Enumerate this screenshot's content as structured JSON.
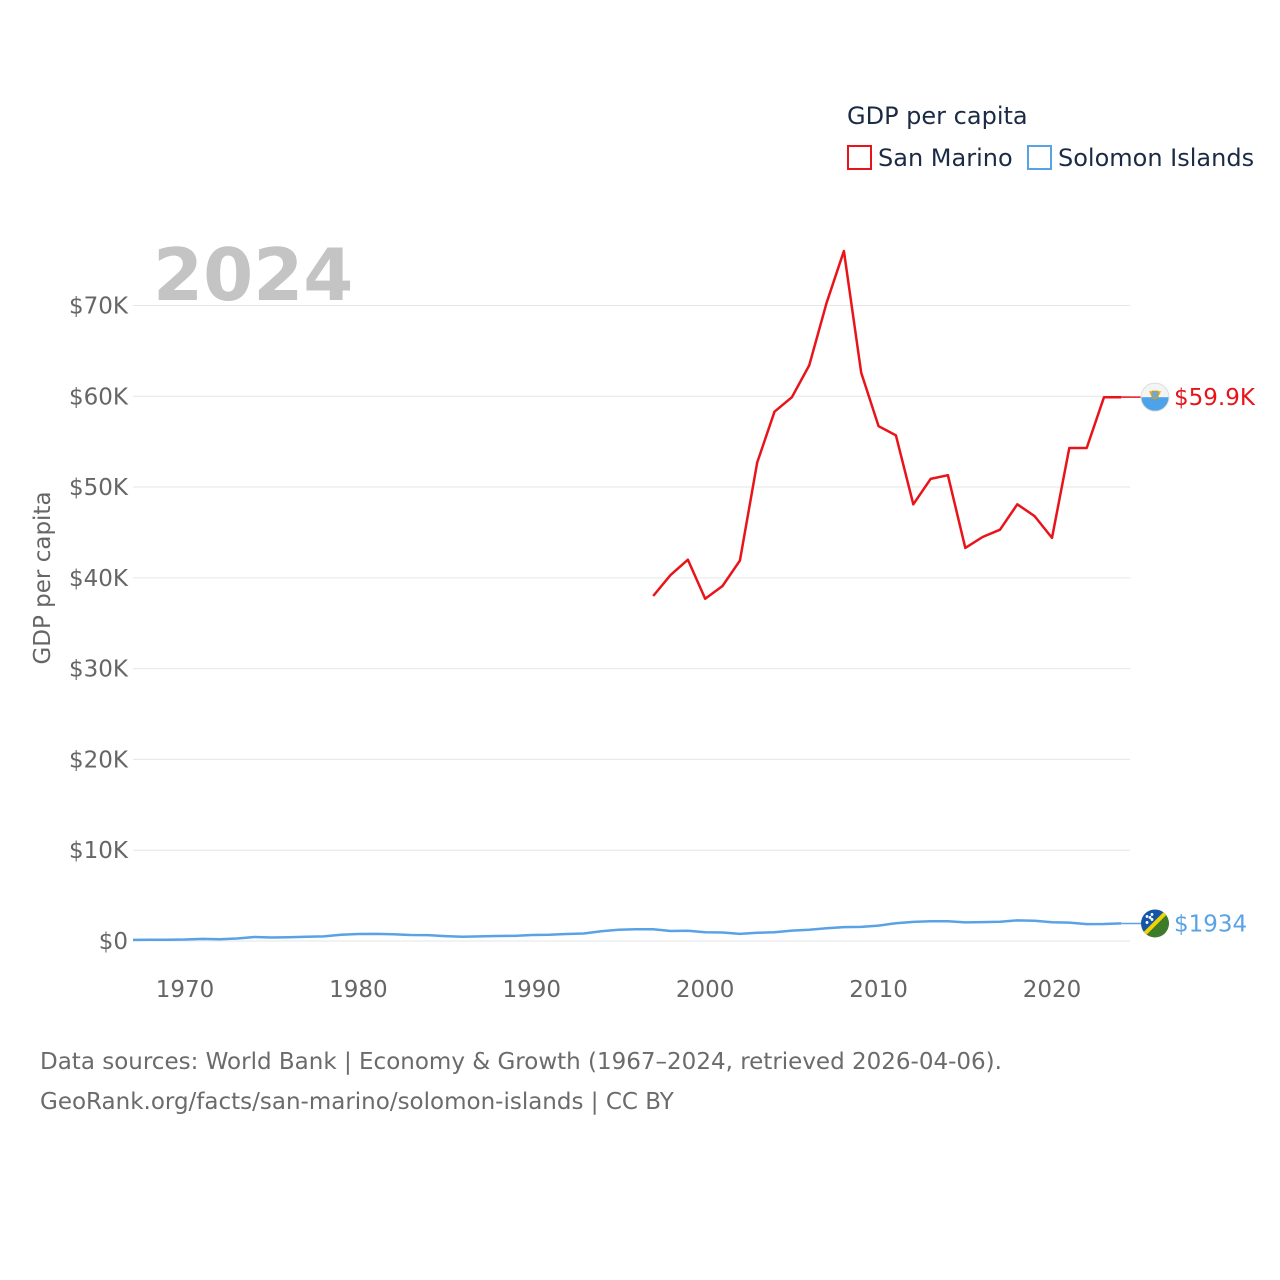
{
  "chart_data": {
    "type": "line",
    "year_label": "2024",
    "ylabel": "GDP per capita",
    "xlim": [
      1967,
      2024.5
    ],
    "ylim": [
      0,
      76000
    ],
    "y_ticks": [
      {
        "value": 0,
        "label": "$0"
      },
      {
        "value": 10000,
        "label": "$10K"
      },
      {
        "value": 20000,
        "label": "$20K"
      },
      {
        "value": 30000,
        "label": "$30K"
      },
      {
        "value": 40000,
        "label": "$40K"
      },
      {
        "value": 50000,
        "label": "$50K"
      },
      {
        "value": 60000,
        "label": "$60K"
      },
      {
        "value": 70000,
        "label": "$70K"
      }
    ],
    "x_ticks": [
      {
        "value": 1970,
        "label": "1970"
      },
      {
        "value": 1980,
        "label": "1980"
      },
      {
        "value": 1990,
        "label": "1990"
      },
      {
        "value": 2000,
        "label": "2000"
      },
      {
        "value": 2010,
        "label": "2010"
      },
      {
        "value": 2020,
        "label": "2020"
      }
    ],
    "legend": {
      "title": "GDP per capita",
      "items": [
        "San Marino",
        "Solomon Islands"
      ]
    },
    "series": [
      {
        "name": "San Marino",
        "color": "#e8141a",
        "end_label": "$59.9K",
        "points": [
          [
            1997,
            38000
          ],
          [
            1998,
            40300
          ],
          [
            1999,
            42000
          ],
          [
            2000,
            37700
          ],
          [
            2001,
            39100
          ],
          [
            2002,
            41900
          ],
          [
            2003,
            52700
          ],
          [
            2004,
            58300
          ],
          [
            2005,
            59900
          ],
          [
            2006,
            63400
          ],
          [
            2007,
            70300
          ],
          [
            2008,
            76000
          ],
          [
            2009,
            62600
          ],
          [
            2010,
            56700
          ],
          [
            2011,
            55700
          ],
          [
            2012,
            48100
          ],
          [
            2013,
            50900
          ],
          [
            2014,
            51300
          ],
          [
            2015,
            43300
          ],
          [
            2016,
            44500
          ],
          [
            2017,
            45300
          ],
          [
            2018,
            48100
          ],
          [
            2019,
            46800
          ],
          [
            2020,
            44400
          ],
          [
            2021,
            54300
          ],
          [
            2022,
            54300
          ],
          [
            2023,
            59900
          ],
          [
            2024,
            59900
          ]
        ]
      },
      {
        "name": "Solomon Islands",
        "color": "#5aa2e6",
        "end_label": "$1934",
        "points": [
          [
            1967,
            120
          ],
          [
            1968,
            130
          ],
          [
            1969,
            140
          ],
          [
            1970,
            170
          ],
          [
            1971,
            230
          ],
          [
            1972,
            200
          ],
          [
            1973,
            280
          ],
          [
            1974,
            440
          ],
          [
            1975,
            390
          ],
          [
            1976,
            420
          ],
          [
            1977,
            460
          ],
          [
            1978,
            510
          ],
          [
            1979,
            690
          ],
          [
            1980,
            770
          ],
          [
            1981,
            780
          ],
          [
            1982,
            740
          ],
          [
            1983,
            660
          ],
          [
            1984,
            650
          ],
          [
            1985,
            540
          ],
          [
            1986,
            460
          ],
          [
            1987,
            510
          ],
          [
            1988,
            550
          ],
          [
            1989,
            560
          ],
          [
            1990,
            660
          ],
          [
            1991,
            690
          ],
          [
            1992,
            770
          ],
          [
            1993,
            830
          ],
          [
            1994,
            1080
          ],
          [
            1995,
            1230
          ],
          [
            1996,
            1300
          ],
          [
            1997,
            1300
          ],
          [
            1998,
            1100
          ],
          [
            1999,
            1120
          ],
          [
            2000,
            970
          ],
          [
            2001,
            940
          ],
          [
            2002,
            780
          ],
          [
            2003,
            900
          ],
          [
            2004,
            970
          ],
          [
            2005,
            1140
          ],
          [
            2006,
            1250
          ],
          [
            2007,
            1400
          ],
          [
            2008,
            1530
          ],
          [
            2009,
            1550
          ],
          [
            2010,
            1700
          ],
          [
            2011,
            1960
          ],
          [
            2012,
            2100
          ],
          [
            2013,
            2180
          ],
          [
            2014,
            2170
          ],
          [
            2015,
            2050
          ],
          [
            2016,
            2080
          ],
          [
            2017,
            2120
          ],
          [
            2018,
            2270
          ],
          [
            2019,
            2220
          ],
          [
            2020,
            2070
          ],
          [
            2021,
            2030
          ],
          [
            2022,
            1860
          ],
          [
            2023,
            1870
          ],
          [
            2024,
            1934
          ]
        ]
      }
    ]
  },
  "footer": {
    "line1": "Data sources: World Bank | Economy & Growth (1967–2024, retrieved 2026-04-06).",
    "line2": "GeoRank.org/facts/san-marino/solomon-islands | CC BY"
  }
}
